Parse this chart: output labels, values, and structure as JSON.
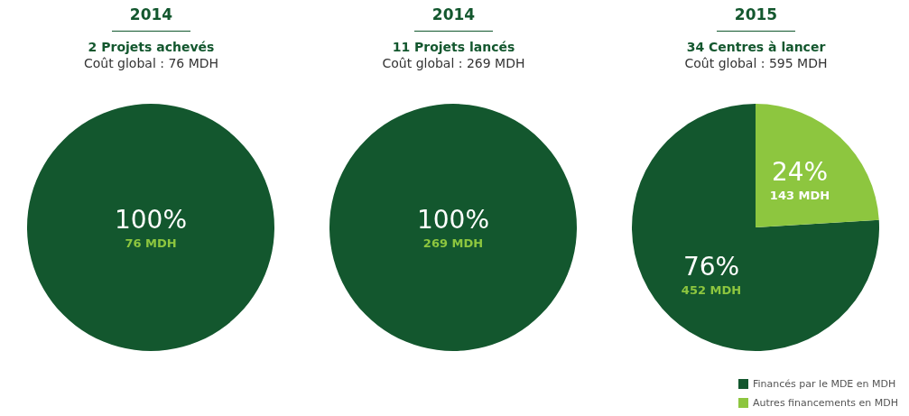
{
  "chart_data": [
    {
      "type": "pie",
      "title": "2014",
      "subtitle": "2 Projets achevés",
      "annotations": [
        "Coût global : 76 MDH"
      ],
      "categories": [
        null
      ],
      "values": [
        76
      ],
      "colors": [
        "#13572e"
      ],
      "value_labels": [
        "100%\n76 MDH"
      ],
      "legend": false
    },
    {
      "type": "pie",
      "title": "2014",
      "subtitle": "11 Projets lancés",
      "annotations": [
        "Coût global : 269 MDH"
      ],
      "categories": [
        null
      ],
      "values": [
        269
      ],
      "colors": [
        "#13572e"
      ],
      "value_labels": [
        "100%\n269 MDH"
      ],
      "legend": false
    },
    {
      "type": "pie",
      "title": "2015",
      "subtitle": "34 Centres à lancer",
      "annotations": [
        "Coût global : 595 MDH"
      ],
      "categories": [
        "Financés par le MDE en MDH",
        "Autres financements en MDH"
      ],
      "values": [
        452,
        143
      ],
      "colors": [
        "#13572e",
        "#8dc63f"
      ],
      "value_labels": [
        "76%\n452 MDH",
        "24%\n143 MDH"
      ],
      "legend": "bottom right"
    }
  ]
}
